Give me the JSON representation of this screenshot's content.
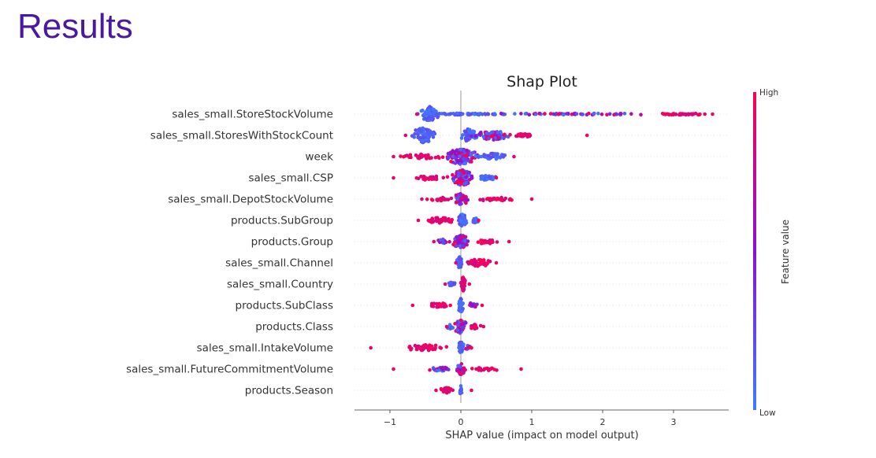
{
  "page": {
    "heading": "Results",
    "heading_color": "#4a1a9e"
  },
  "chart_data": {
    "type": "scatter",
    "subtype": "beeswarm",
    "title": "Shap Plot",
    "xlabel": "SHAP value (impact on model output)",
    "ylabel": "",
    "xlim": [
      -1.5,
      3.8
    ],
    "x_ticks": [
      -1,
      0,
      1,
      2,
      3
    ],
    "x_tick_labels": [
      "−1",
      "0",
      "1",
      "2",
      "3"
    ],
    "grid": false,
    "colorbar": {
      "label": "Feature value",
      "high_label": "High",
      "low_label": "Low",
      "low_color": "#3c7dff",
      "mid_color": "#8a10d8",
      "high_color": "#ff0052"
    },
    "features": [
      {
        "name": "sales_small.StoreStockVolume",
        "clusters": [
          {
            "x": -0.44,
            "width": 0.14,
            "spread": 0.95,
            "count": 70,
            "color": "low"
          },
          {
            "x": 0.0,
            "width": 0.9,
            "spread": 0.1,
            "count": 80,
            "color": "low"
          },
          {
            "x": 1.6,
            "width": 1.2,
            "spread": 0.1,
            "count": 60,
            "color": "mix"
          },
          {
            "x": 3.1,
            "width": 0.45,
            "spread": 0.1,
            "count": 40,
            "color": "high"
          }
        ],
        "range": [
          -0.62,
          3.55
        ]
      },
      {
        "name": "sales_small.StoresWithStockCount",
        "clusters": [
          {
            "x": -0.52,
            "width": 0.2,
            "spread": 1.0,
            "count": 80,
            "color": "low"
          },
          {
            "x": 0.1,
            "width": 0.15,
            "spread": 0.8,
            "count": 40,
            "color": "low"
          },
          {
            "x": 0.45,
            "width": 0.35,
            "spread": 0.6,
            "count": 60,
            "color": "mix"
          },
          {
            "x": 0.9,
            "width": 0.3,
            "spread": 0.2,
            "count": 30,
            "color": "high"
          }
        ],
        "range": [
          -0.78,
          1.78
        ]
      },
      {
        "name": "week",
        "clusters": [
          {
            "x": 0.0,
            "width": 0.28,
            "spread": 1.0,
            "count": 110,
            "color": "mix"
          },
          {
            "x": -0.55,
            "width": 0.35,
            "spread": 0.3,
            "count": 30,
            "color": "high"
          },
          {
            "x": 0.45,
            "width": 0.3,
            "spread": 0.4,
            "count": 35,
            "color": "low"
          }
        ],
        "range": [
          -0.95,
          0.75
        ]
      },
      {
        "name": "sales_small.CSP",
        "clusters": [
          {
            "x": 0.02,
            "width": 0.18,
            "spread": 1.0,
            "count": 90,
            "color": "mix"
          },
          {
            "x": -0.45,
            "width": 0.3,
            "spread": 0.3,
            "count": 30,
            "color": "high"
          },
          {
            "x": 0.38,
            "width": 0.18,
            "spread": 0.3,
            "count": 25,
            "color": "low"
          }
        ],
        "range": [
          -0.95,
          0.5
        ]
      },
      {
        "name": "sales_small.DepotStockVolume",
        "clusters": [
          {
            "x": 0.0,
            "width": 0.14,
            "spread": 0.7,
            "count": 60,
            "color": "mix"
          },
          {
            "x": -0.3,
            "width": 0.22,
            "spread": 0.25,
            "count": 20,
            "color": "high"
          },
          {
            "x": 0.5,
            "width": 0.35,
            "spread": 0.25,
            "count": 30,
            "color": "high"
          }
        ],
        "range": [
          -0.55,
          1.0
        ]
      },
      {
        "name": "products.SubGroup",
        "clusters": [
          {
            "x": 0.02,
            "width": 0.08,
            "spread": 0.8,
            "count": 50,
            "color": "low"
          },
          {
            "x": -0.3,
            "width": 0.28,
            "spread": 0.35,
            "count": 40,
            "color": "high"
          },
          {
            "x": 0.2,
            "width": 0.06,
            "spread": 0.3,
            "count": 15,
            "color": "low"
          }
        ],
        "range": [
          -0.6,
          0.25
        ]
      },
      {
        "name": "products.Group",
        "clusters": [
          {
            "x": 0.0,
            "width": 0.14,
            "spread": 0.9,
            "count": 60,
            "color": "mix"
          },
          {
            "x": 0.35,
            "width": 0.2,
            "spread": 0.3,
            "count": 30,
            "color": "high"
          },
          {
            "x": -0.25,
            "width": 0.12,
            "spread": 0.3,
            "count": 15,
            "color": "mix"
          }
        ],
        "range": [
          -0.38,
          0.68
        ]
      },
      {
        "name": "sales_small.Channel",
        "clusters": [
          {
            "x": -0.02,
            "width": 0.04,
            "spread": 0.8,
            "count": 30,
            "color": "low"
          },
          {
            "x": 0.25,
            "width": 0.22,
            "spread": 0.5,
            "count": 45,
            "color": "high"
          }
        ],
        "range": [
          -0.07,
          0.5
        ]
      },
      {
        "name": "sales_small.Country",
        "clusters": [
          {
            "x": -0.14,
            "width": 0.08,
            "spread": 0.25,
            "count": 15,
            "color": "low"
          },
          {
            "x": 0.03,
            "width": 0.05,
            "spread": 0.9,
            "count": 40,
            "color": "high"
          }
        ],
        "range": [
          -0.22,
          0.12
        ]
      },
      {
        "name": "products.SubClass",
        "clusters": [
          {
            "x": 0.0,
            "width": 0.05,
            "spread": 0.9,
            "count": 40,
            "color": "low"
          },
          {
            "x": -0.3,
            "width": 0.22,
            "spread": 0.3,
            "count": 25,
            "color": "high"
          },
          {
            "x": 0.15,
            "width": 0.12,
            "spread": 0.3,
            "count": 15,
            "color": "mix"
          }
        ],
        "range": [
          -0.68,
          0.3
        ]
      },
      {
        "name": "products.Class",
        "clusters": [
          {
            "x": 0.0,
            "width": 0.1,
            "spread": 0.9,
            "count": 45,
            "color": "mix"
          },
          {
            "x": 0.2,
            "width": 0.1,
            "spread": 0.3,
            "count": 20,
            "color": "high"
          },
          {
            "x": -0.15,
            "width": 0.06,
            "spread": 0.3,
            "count": 10,
            "color": "low"
          }
        ],
        "range": [
          -0.2,
          0.32
        ]
      },
      {
        "name": "sales_small.IntakeVolume",
        "clusters": [
          {
            "x": 0.0,
            "width": 0.05,
            "spread": 0.8,
            "count": 35,
            "color": "low"
          },
          {
            "x": -0.5,
            "width": 0.4,
            "spread": 0.4,
            "count": 45,
            "color": "high"
          },
          {
            "x": 0.1,
            "width": 0.06,
            "spread": 0.3,
            "count": 10,
            "color": "mix"
          }
        ],
        "range": [
          -1.27,
          0.15
        ]
      },
      {
        "name": "sales_small.FutureCommitmentVolume",
        "clusters": [
          {
            "x": 0.0,
            "width": 0.08,
            "spread": 0.7,
            "count": 35,
            "color": "mix"
          },
          {
            "x": -0.3,
            "width": 0.2,
            "spread": 0.25,
            "count": 25,
            "color": "mix"
          },
          {
            "x": 0.35,
            "width": 0.3,
            "spread": 0.2,
            "count": 18,
            "color": "high"
          }
        ],
        "range": [
          -0.95,
          0.85
        ]
      },
      {
        "name": "products.Season",
        "clusters": [
          {
            "x": 0.0,
            "width": 0.02,
            "spread": 0.6,
            "count": 15,
            "color": "low"
          },
          {
            "x": -0.2,
            "width": 0.12,
            "spread": 0.35,
            "count": 25,
            "color": "high"
          }
        ],
        "range": [
          -0.35,
          0.15
        ]
      }
    ]
  }
}
